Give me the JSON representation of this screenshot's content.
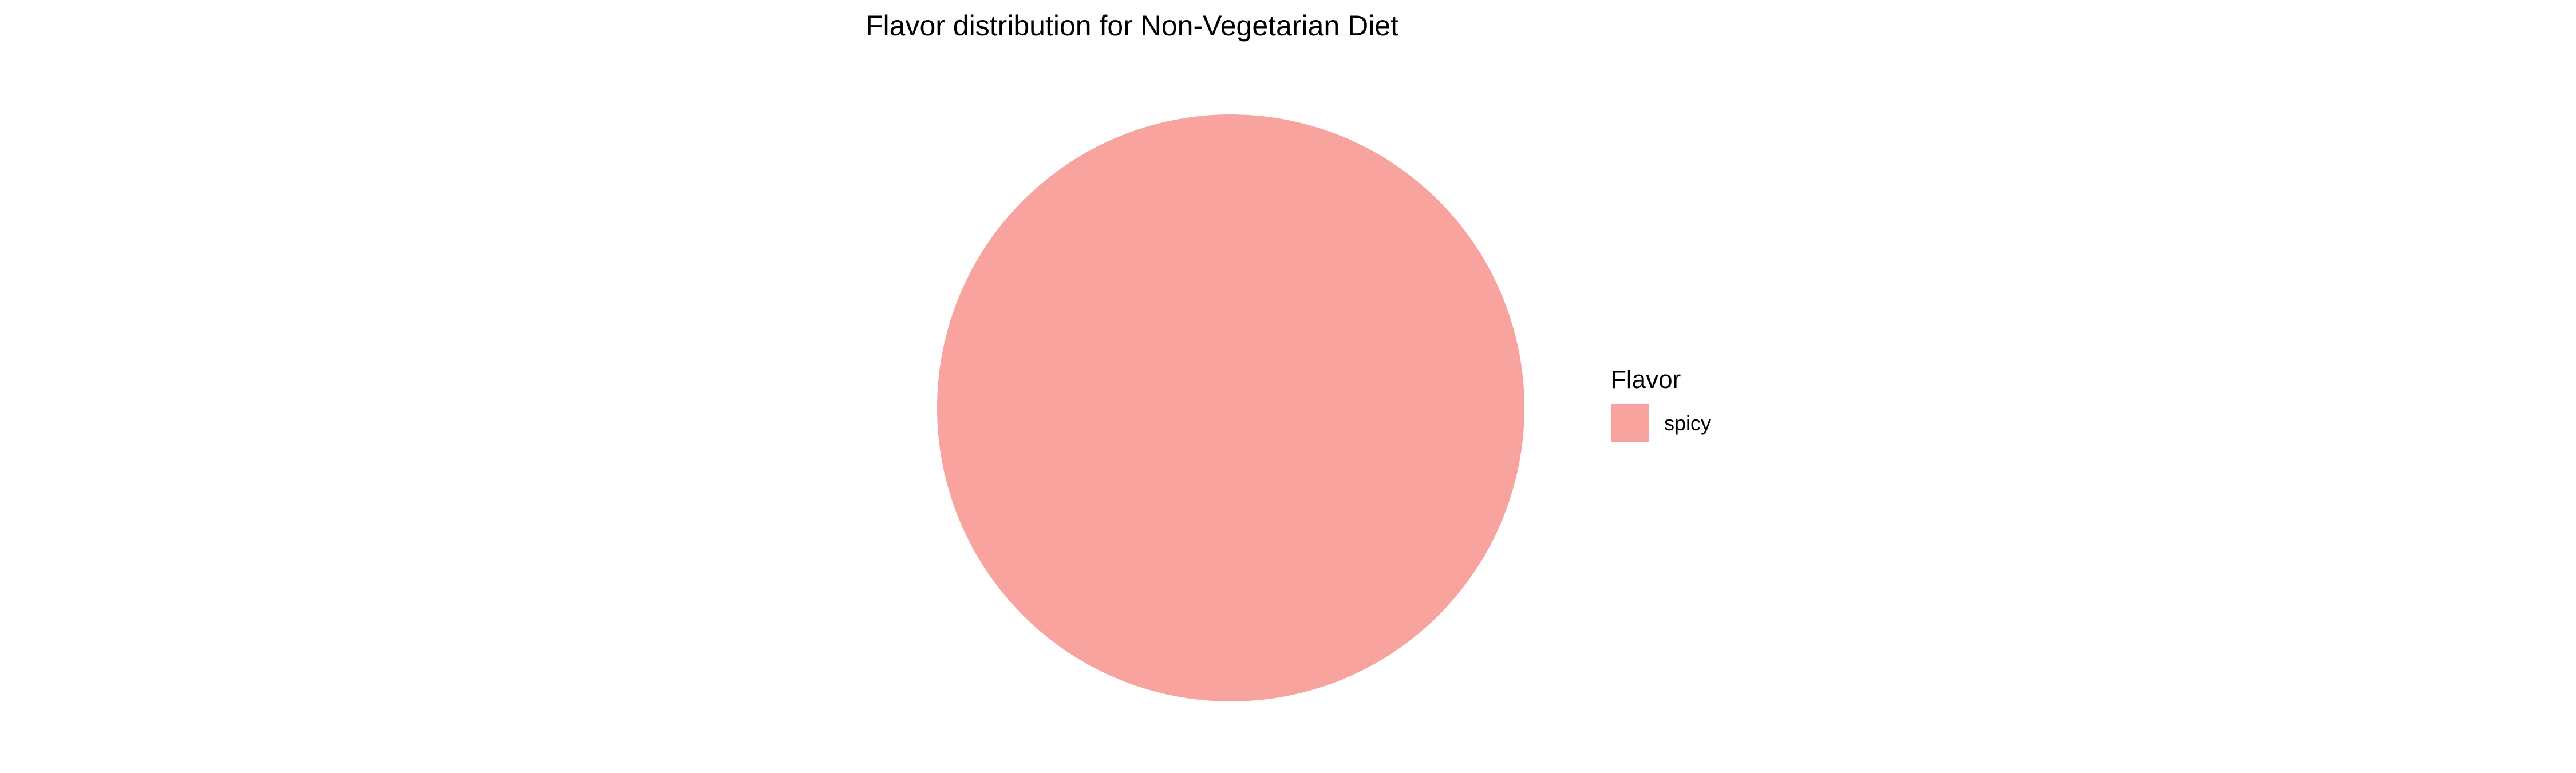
{
  "chart_data": {
    "type": "pie",
    "title": "Flavor distribution for Non-Vegetarian Diet",
    "categories": [
      "spicy"
    ],
    "values": [
      1
    ],
    "colors": [
      "#F8A39D"
    ],
    "legend": {
      "title": "Flavor",
      "placement": "right",
      "entries": [
        "spicy"
      ]
    }
  }
}
